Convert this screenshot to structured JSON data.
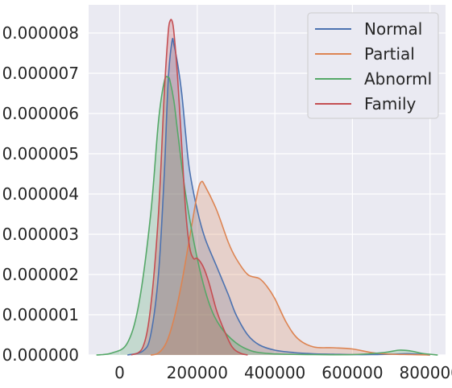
{
  "chart_data": {
    "type": "area",
    "subtype": "kde",
    "title": "",
    "xlabel": "",
    "ylabel": "",
    "xlim": [
      -80000,
      840000
    ],
    "ylim": [
      0,
      8.7e-06
    ],
    "x_ticks": [
      0,
      200000,
      400000,
      600000,
      800000
    ],
    "x_tick_labels": [
      "0",
      "200000",
      "400000",
      "600000",
      "800000"
    ],
    "y_ticks": [
      0,
      1e-06,
      2e-06,
      3e-06,
      4e-06,
      5e-06,
      6e-06,
      7e-06,
      8e-06
    ],
    "y_tick_labels": [
      "0.000000",
      "0.000001",
      "0.000002",
      "0.000003",
      "0.000004",
      "0.000005",
      "0.000006",
      "0.000007",
      "0.000008"
    ],
    "grid": true,
    "legend_position": "top-right",
    "background_color": "#eaeaf2",
    "series": [
      {
        "name": "Normal",
        "color": "#4c72b0",
        "x": [
          20000,
          60000,
          80000,
          100000,
          115000,
          125000,
          135000,
          140000,
          150000,
          160000,
          170000,
          180000,
          200000,
          220000,
          250000,
          280000,
          300000,
          330000,
          360000,
          400000,
          450000,
          500000,
          550000,
          600000,
          650000,
          700000,
          750000,
          800000
        ],
        "values": [
          0,
          1e-07,
          5e-07,
          2e-06,
          4.5e-06,
          6.8e-06,
          7.8e-06,
          7.7e-06,
          7.2e-06,
          6.5e-06,
          5.5e-06,
          4.6e-06,
          3.6e-06,
          2.9e-06,
          2.2e-06,
          1.5e-06,
          1e-06,
          5e-07,
          2.5e-07,
          1.2e-07,
          6e-08,
          3e-08,
          2e-08,
          1e-08,
          1e-08,
          2e-08,
          3e-08,
          0
        ]
      },
      {
        "name": "Partial",
        "color": "#dd8452",
        "x": [
          80000,
          100000,
          120000,
          140000,
          160000,
          180000,
          200000,
          210000,
          220000,
          250000,
          280000,
          300000,
          330000,
          360000,
          380000,
          400000,
          430000,
          460000,
          500000,
          550000,
          600000,
          650000,
          700000,
          750000,
          800000
        ],
        "values": [
          0,
          5e-08,
          3e-07,
          9e-07,
          1.8e-06,
          2.9e-06,
          4e-06,
          4.3e-06,
          4.2e-06,
          3.6e-06,
          2.8e-06,
          2.4e-06,
          2e-06,
          1.9e-06,
          1.7e-06,
          1.4e-06,
          8e-07,
          4e-07,
          2e-07,
          1.8e-07,
          1.5e-07,
          6e-08,
          2e-08,
          1e-08,
          0
        ]
      },
      {
        "name": "Abnorml",
        "color": "#55a868",
        "x": [
          -60000,
          -20000,
          20000,
          50000,
          80000,
          100000,
          115000,
          125000,
          130000,
          140000,
          150000,
          170000,
          200000,
          230000,
          260000,
          300000,
          340000,
          380000,
          420000,
          500000,
          600000,
          680000,
          720000,
          750000,
          780000,
          820000
        ],
        "values": [
          0,
          5e-08,
          3e-07,
          1.3e-06,
          3.5e-06,
          5.8e-06,
          6.8e-06,
          6.9e-06,
          6.8e-06,
          6.3e-06,
          5.5e-06,
          4e-06,
          2.4e-06,
          1.3e-06,
          7e-07,
          3e-07,
          1e-07,
          4e-08,
          2e-08,
          1e-08,
          1e-08,
          6e-08,
          1.2e-07,
          1e-07,
          4e-08,
          0
        ]
      },
      {
        "name": "Family",
        "color": "#c44e52",
        "x": [
          30000,
          60000,
          80000,
          100000,
          115000,
          125000,
          130000,
          135000,
          140000,
          150000,
          160000,
          170000,
          180000,
          190000,
          200000,
          215000,
          230000,
          250000,
          270000,
          290000,
          310000,
          330000
        ],
        "values": [
          0,
          2e-07,
          1.2e-06,
          3.5e-06,
          6.5e-06,
          8e-06,
          8.3e-06,
          8.3e-06,
          8e-06,
          6.8e-06,
          5.2e-06,
          3.6e-06,
          2.7e-06,
          2.4e-06,
          2.4e-06,
          2.2e-06,
          1.8e-06,
          1.1e-06,
          6e-07,
          2e-07,
          5e-08,
          0
        ]
      }
    ]
  }
}
